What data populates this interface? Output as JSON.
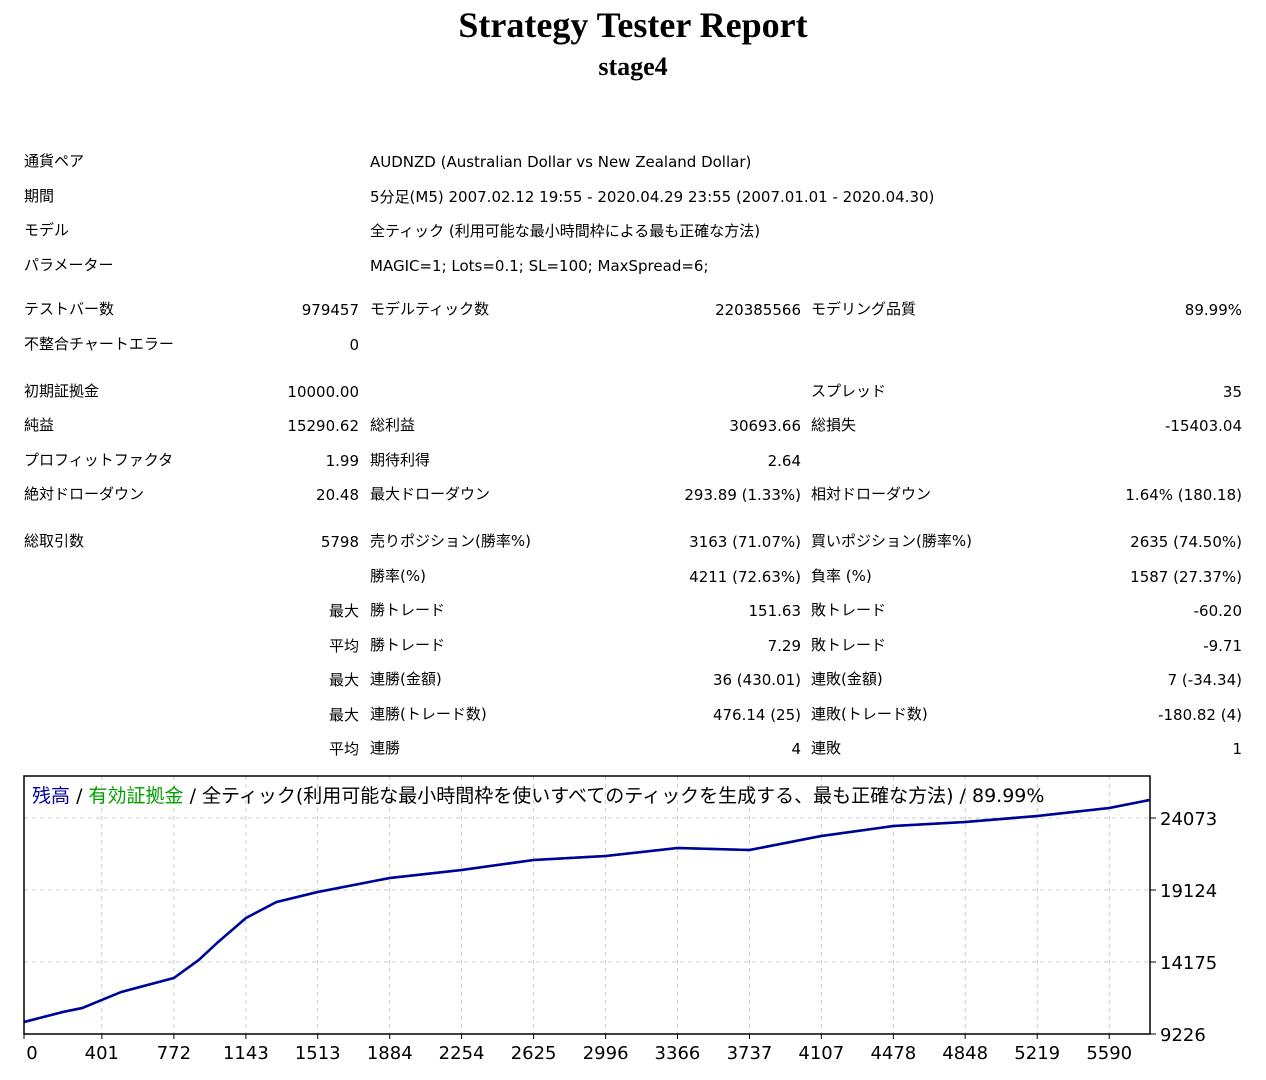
{
  "header": {
    "title": "Strategy Tester Report",
    "subtitle": "stage4"
  },
  "info": [
    {
      "label": "通貨ペア",
      "value": "AUDNZD (Australian Dollar vs New Zealand Dollar)"
    },
    {
      "label": "期間",
      "value": "5分足(M5) 2007.02.12 19:55 - 2020.04.29 23:55 (2007.01.01 - 2020.04.30)"
    },
    {
      "label": "モデル",
      "value": "全ティック (利用可能な最小時間枠による最も正確な方法)"
    },
    {
      "label": "パラメーター",
      "value": "MAGIC=1; Lots=0.1; SL=100; MaxSpread=6;"
    }
  ],
  "stats": [
    [
      {
        "label1": "テストバー数",
        "value1": "979457",
        "label2": "モデルティック数",
        "value2": "220385566",
        "label3": "モデリング品質",
        "value3": "89.99%"
      },
      {
        "label1": "不整合チャートエラー",
        "value1": "0"
      }
    ],
    [
      {
        "label1": "初期証拠金",
        "value1": "10000.00",
        "label3": "スプレッド",
        "value3": "35"
      },
      {
        "label1": "純益",
        "value1": "15290.62",
        "label2": "総利益",
        "value2": "30693.66",
        "label3": "総損失",
        "value3": "-15403.04"
      },
      {
        "label1": "プロフィットファクタ",
        "value1": "1.99",
        "label2": "期待利得",
        "value2": "2.64"
      },
      {
        "label1": "絶対ドローダウン",
        "value1": "20.48",
        "label2": "最大ドローダウン",
        "value2": "293.89 (1.33%)",
        "label3": "相対ドローダウン",
        "value3": "1.64% (180.18)"
      }
    ],
    [
      {
        "label1": "総取引数",
        "value1": "5798",
        "label2": "売りポジション(勝率%)",
        "value2": "3163 (71.07%)",
        "label3": "買いポジション(勝率%)",
        "value3": "2635 (74.50%)"
      },
      {
        "label2": "勝率(%)",
        "value2": "4211 (72.63%)",
        "label3": "負率 (%)",
        "value3": "1587 (27.37%)"
      },
      {
        "value1": "最大",
        "label2": "勝トレード",
        "value2": "151.63",
        "label3": "敗トレード",
        "value3": "-60.20"
      },
      {
        "value1": "平均",
        "label2": "勝トレード",
        "value2": "7.29",
        "label3": "敗トレード",
        "value3": "-9.71"
      },
      {
        "value1": "最大",
        "label2": "連勝(金額)",
        "value2": "36 (430.01)",
        "label3": "連敗(金額)",
        "value3": "7 (-34.34)"
      },
      {
        "value1": "最大",
        "label2": "連勝(トレード数)",
        "value2": "476.14 (25)",
        "label3": "連敗(トレード数)",
        "value3": "-180.82 (4)"
      },
      {
        "value1": "平均",
        "label2": "連勝",
        "value2": "4",
        "label3": "連敗",
        "value3": "1"
      }
    ]
  ],
  "chart_data": {
    "type": "line",
    "legend_separator": "/",
    "legend_note": "全ティック(利用可能な最小時間枠を使いすべてのティックを生成する、最も正確な方法)",
    "legend_quality": "89.99%",
    "x": [
      0,
      200,
      300,
      500,
      772,
      900,
      1000,
      1143,
      1300,
      1513,
      1884,
      2254,
      2625,
      2996,
      3366,
      3737,
      4107,
      4478,
      4848,
      5219,
      5590,
      5798
    ],
    "series": [
      {
        "name": "残高",
        "color": "#0000a0",
        "values": [
          10051,
          10738,
          11013,
          12113,
          13075,
          14313,
          15550,
          17200,
          18300,
          18987,
          19949,
          20499,
          21186,
          21461,
          22011,
          21874,
          22836,
          23524,
          23799,
          24211,
          24761,
          25311
        ]
      },
      {
        "name": "有効証拠金",
        "color": "#00a000",
        "values": [
          10051,
          10738,
          11013,
          12113,
          13075,
          14313,
          15550,
          17200,
          18300,
          18987,
          19949,
          20499,
          21186,
          21461,
          22011,
          21874,
          22836,
          23524,
          23799,
          24211,
          24761,
          25311
        ]
      }
    ],
    "xlim": [
      0,
      5800
    ],
    "ylim": [
      9226,
      26960
    ],
    "xticks": [
      0,
      401,
      772,
      1143,
      1513,
      1884,
      2254,
      2625,
      2996,
      3366,
      3737,
      4107,
      4478,
      4848,
      5219,
      5590
    ],
    "yticks": [
      9226,
      14175,
      19124,
      24073
    ],
    "grid": true
  }
}
